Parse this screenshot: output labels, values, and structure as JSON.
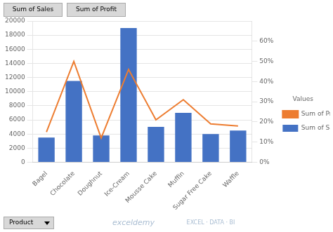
{
  "chart_data": {
    "type": "bar",
    "categories": [
      "Bagel",
      "Chocolate",
      "Doughnut",
      "Ice-Cream",
      "Mousse Cake",
      "Muffin",
      "Sugar Free Cake",
      "Waffle"
    ],
    "series": [
      {
        "name": "Sum of Sales",
        "type": "bar",
        "color": "#4472C4",
        "values": [
          3500,
          11500,
          3800,
          19000,
          5000,
          7000,
          4000,
          4500
        ]
      },
      {
        "name": "Sum of Profit",
        "type": "line",
        "color": "#ED7D31",
        "axis": "y2",
        "marker": "none",
        "values": [
          0.15,
          0.5,
          0.12,
          0.46,
          0.21,
          0.31,
          0.19,
          0.18
        ]
      }
    ],
    "ylim": [
      0,
      20000
    ],
    "yticks": [
      0,
      2000,
      4000,
      6000,
      8000,
      10000,
      12000,
      14000,
      16000,
      18000,
      20000
    ],
    "y2lim": [
      0,
      0.7
    ],
    "y2ticks": [
      {
        "value": 0.0,
        "label": "0%"
      },
      {
        "value": 0.1,
        "label": "10%"
      },
      {
        "value": 0.2,
        "label": "20%"
      },
      {
        "value": 0.3,
        "label": "30%"
      },
      {
        "value": 0.4,
        "label": "40%"
      },
      {
        "value": 0.5,
        "label": "50%"
      },
      {
        "value": 0.6,
        "label": "60%"
      }
    ],
    "grid": true,
    "legend": "right",
    "legend_title": "Values",
    "annotations": [
      "Sum of Sales",
      "Sum of Profit",
      "Product",
      "exceldemy",
      "EXCEL · DATA · BI"
    ]
  }
}
